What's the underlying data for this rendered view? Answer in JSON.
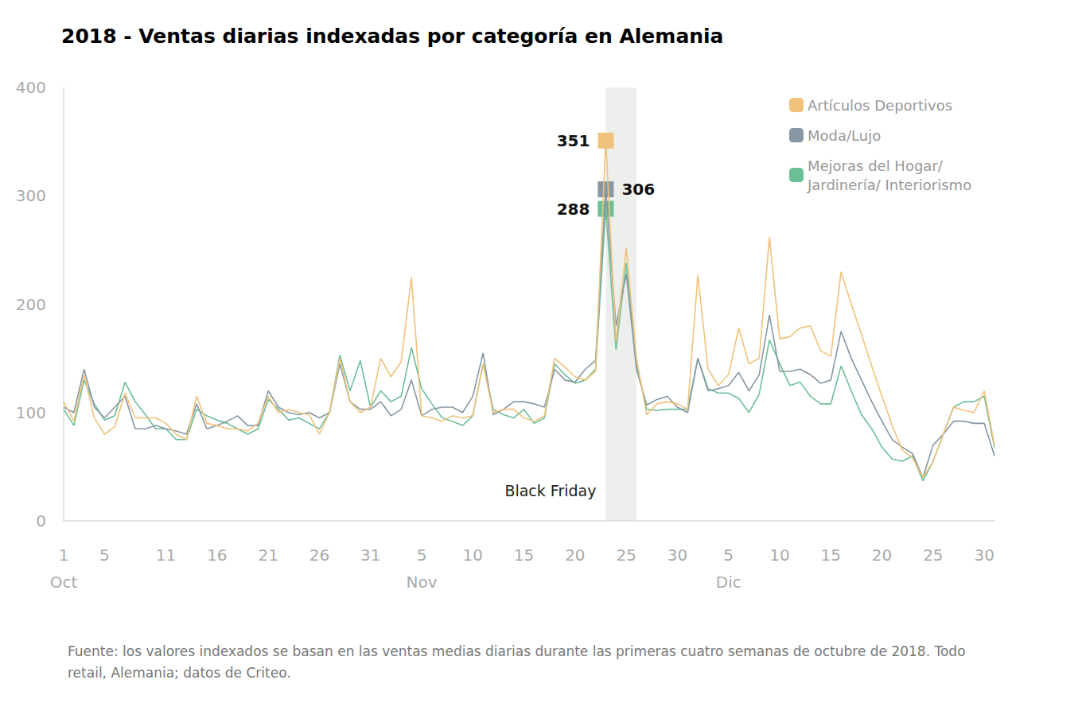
{
  "chart_data": {
    "type": "line",
    "title": "2018 - Ventas diarias indexadas por categoría en Alemania",
    "note": "Fuente: los valores indexados se basan en las ventas medias diarias durante las primeras cuatro semanas de octubre de 2018. Todo retail, Alemania; datos de Criteo.",
    "categories": [
      "1\nOct",
      null,
      null,
      null,
      "5",
      null,
      null,
      null,
      null,
      null,
      "11",
      null,
      null,
      null,
      null,
      "16",
      null,
      null,
      null,
      null,
      "21",
      null,
      null,
      null,
      null,
      "26",
      null,
      null,
      null,
      null,
      "31",
      null,
      null,
      null,
      null,
      "5\nNov",
      null,
      null,
      null,
      null,
      "10",
      null,
      null,
      null,
      null,
      "15",
      null,
      null,
      null,
      null,
      "20",
      null,
      null,
      null,
      null,
      "25",
      null,
      null,
      null,
      null,
      "30",
      null,
      null,
      null,
      null,
      "5\nDic",
      null,
      null,
      null,
      null,
      "10",
      null,
      null,
      null,
      null,
      "15",
      null,
      null,
      null,
      null,
      "20",
      null,
      null,
      null,
      null,
      "25",
      null,
      null,
      null,
      null,
      "30",
      null
    ],
    "series": [
      {
        "name": "Artículos Deportivos",
        "color": "#f0c27b",
        "values": [
          110,
          92,
          135,
          95,
          80,
          87,
          118,
          95,
          95,
          95,
          90,
          80,
          75,
          115,
          90,
          88,
          85,
          85,
          83,
          90,
          115,
          100,
          103,
          100,
          98,
          80,
          100,
          150,
          110,
          100,
          105,
          150,
          133,
          147,
          225,
          97,
          95,
          92,
          97,
          95,
          97,
          145,
          100,
          103,
          103,
          95,
          92,
          97,
          150,
          142,
          133,
          130,
          138,
          351,
          165,
          252,
          150,
          98,
          108,
          110,
          108,
          103,
          227,
          140,
          125,
          135,
          178,
          145,
          150,
          262,
          168,
          170,
          178,
          180,
          157,
          152,
          230,
          200,
          172,
          143,
          115,
          88,
          65,
          58,
          40,
          55,
          80,
          105,
          102,
          100,
          120,
          70
        ],
        "value_labels": [
          null,
          null,
          null,
          null,
          null,
          null,
          null,
          null,
          null,
          null,
          null,
          null,
          null,
          null,
          null,
          null,
          null,
          null,
          null,
          null,
          null,
          null,
          null,
          null,
          null,
          null,
          null,
          null,
          null,
          null,
          null,
          null,
          null,
          null,
          null,
          null,
          null,
          null,
          null,
          null,
          null,
          null,
          null,
          null,
          null,
          null,
          null,
          null,
          null,
          null,
          null,
          null,
          null,
          "351",
          null,
          null,
          null,
          null,
          null,
          null,
          null,
          null,
          null,
          null,
          null,
          null,
          null,
          null,
          null,
          null,
          null,
          null,
          null,
          null,
          null,
          null,
          null,
          null,
          null,
          null,
          null,
          null,
          null,
          null,
          null,
          null,
          null,
          null,
          null,
          null,
          null,
          null
        ]
      },
      {
        "name": "Moda/Lujo",
        "color": "#8797a4",
        "values": [
          105,
          100,
          140,
          105,
          95,
          105,
          115,
          85,
          85,
          88,
          85,
          83,
          80,
          108,
          85,
          88,
          92,
          97,
          88,
          88,
          120,
          105,
          100,
          98,
          100,
          95,
          100,
          145,
          110,
          103,
          103,
          110,
          97,
          103,
          130,
          97,
          103,
          105,
          105,
          100,
          115,
          155,
          98,
          103,
          110,
          110,
          108,
          105,
          140,
          130,
          128,
          140,
          148,
          306,
          180,
          228,
          140,
          107,
          112,
          115,
          105,
          100,
          150,
          120,
          122,
          125,
          137,
          120,
          135,
          190,
          138,
          138,
          140,
          135,
          127,
          130,
          175,
          150,
          130,
          110,
          92,
          75,
          68,
          62,
          40,
          70,
          80,
          92,
          92,
          90,
          90,
          60
        ],
        "value_labels": [
          null,
          null,
          null,
          null,
          null,
          null,
          null,
          null,
          null,
          null,
          null,
          null,
          null,
          null,
          null,
          null,
          null,
          null,
          null,
          null,
          null,
          null,
          null,
          null,
          null,
          null,
          null,
          null,
          null,
          null,
          null,
          null,
          null,
          null,
          null,
          null,
          null,
          null,
          null,
          null,
          null,
          null,
          null,
          null,
          null,
          null,
          null,
          null,
          null,
          null,
          null,
          null,
          null,
          "306",
          null,
          null,
          null,
          null,
          null,
          null,
          null,
          null,
          null,
          null,
          null,
          null,
          null,
          null,
          null,
          null,
          null,
          null,
          null,
          null,
          null,
          null,
          null,
          null,
          null,
          null,
          null,
          null,
          null,
          null,
          null,
          null,
          null,
          null,
          null,
          null,
          null,
          null
        ]
      },
      {
        "name": "Mejoras del Hogar/ Jardinería/ Interiorismo",
        "color": "#6dbf98",
        "values": [
          103,
          88,
          130,
          108,
          93,
          97,
          128,
          110,
          98,
          85,
          85,
          75,
          75,
          103,
          97,
          93,
          90,
          85,
          80,
          85,
          112,
          103,
          93,
          95,
          90,
          85,
          100,
          153,
          120,
          148,
          105,
          120,
          110,
          115,
          160,
          122,
          108,
          95,
          92,
          88,
          97,
          145,
          103,
          98,
          95,
          103,
          90,
          95,
          145,
          135,
          127,
          130,
          140,
          288,
          158,
          238,
          145,
          103,
          102,
          103,
          103,
          103,
          150,
          122,
          118,
          118,
          113,
          100,
          117,
          167,
          145,
          125,
          128,
          115,
          108,
          108,
          143,
          120,
          98,
          85,
          68,
          57,
          55,
          60,
          37,
          55,
          80,
          105,
          110,
          110,
          115,
          68
        ],
        "value_labels": [
          null,
          null,
          null,
          null,
          null,
          null,
          null,
          null,
          null,
          null,
          null,
          null,
          null,
          null,
          null,
          null,
          null,
          null,
          null,
          null,
          null,
          null,
          null,
          null,
          null,
          null,
          null,
          null,
          null,
          null,
          null,
          null,
          null,
          null,
          null,
          null,
          null,
          null,
          null,
          null,
          null,
          null,
          null,
          null,
          null,
          null,
          null,
          null,
          null,
          null,
          null,
          null,
          null,
          "288",
          null,
          null,
          null,
          null,
          null,
          null,
          null,
          null,
          null,
          null,
          null,
          null,
          null,
          null,
          null,
          null,
          null,
          null,
          null,
          null,
          null,
          null,
          null,
          null,
          null,
          null,
          null,
          null,
          null,
          null,
          null,
          null,
          null,
          null,
          null,
          null,
          null,
          null
        ]
      }
    ],
    "highlight": {
      "label": "Black Friday",
      "from": 53,
      "to": 56
    },
    "ylim": [
      0,
      400
    ],
    "yticks": [
      0,
      100,
      200,
      300,
      400
    ],
    "grid": false,
    "legend": "top-right"
  }
}
